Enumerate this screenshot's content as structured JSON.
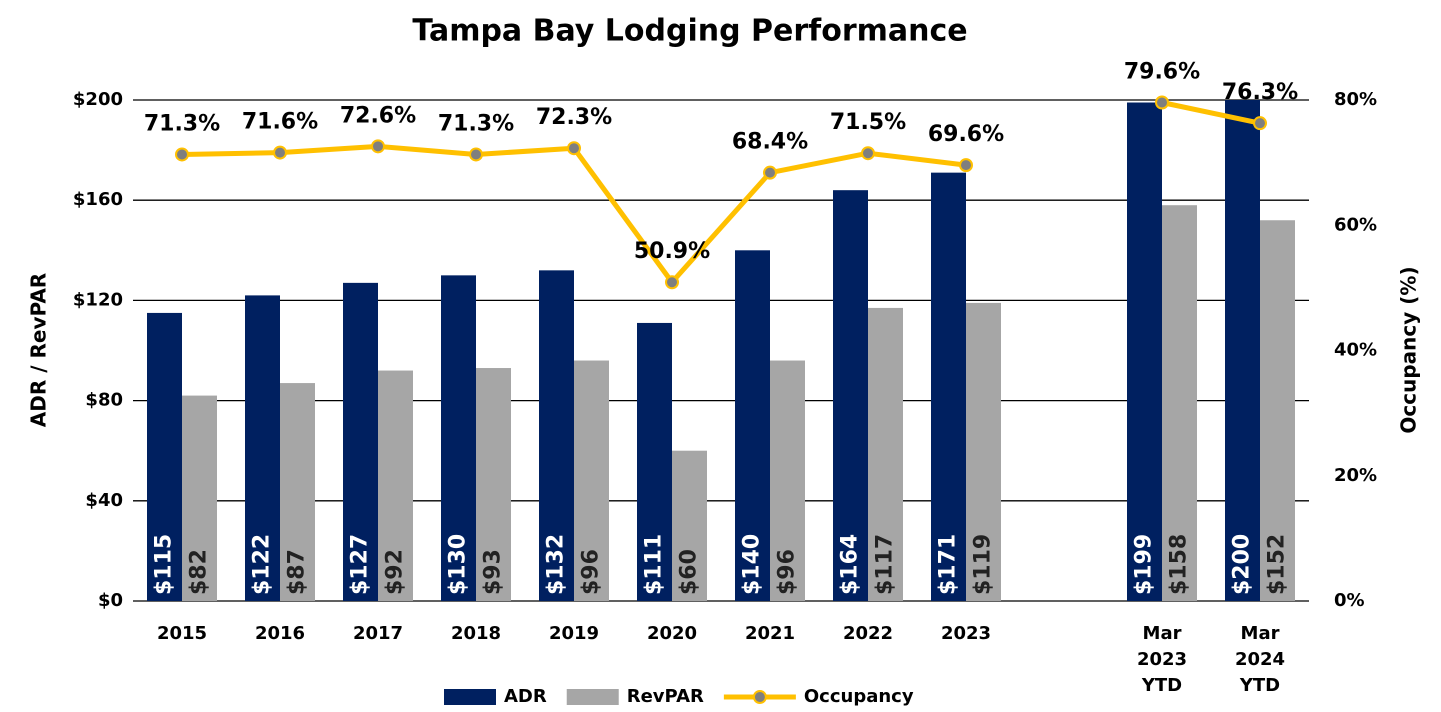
{
  "chart_data": {
    "type": "bar",
    "title": "Tampa Bay Lodging Performance",
    "y_label": "ADR / RevPAR",
    "y2_label": "Occupancy (%)",
    "categories": [
      "2015",
      "2016",
      "2017",
      "2018",
      "2019",
      "2020",
      "2021",
      "2022",
      "2023",
      null,
      "Mar 2023 YTD",
      "Mar 2024 YTD"
    ],
    "series": [
      {
        "name": "ADR",
        "type": "bar",
        "color": "#002060",
        "values": [
          115,
          122,
          127,
          130,
          132,
          111,
          140,
          164,
          171,
          null,
          199,
          200
        ],
        "value_labels": [
          "$115",
          "$122",
          "$127",
          "$130",
          "$132",
          "$111",
          "$140",
          "$164",
          "$171",
          null,
          "$199",
          "$200"
        ]
      },
      {
        "name": "RevPAR",
        "type": "bar",
        "color": "#A6A6A6",
        "values": [
          82,
          87,
          92,
          93,
          96,
          60,
          96,
          117,
          119,
          null,
          158,
          152
        ],
        "value_labels": [
          "$82",
          "$87",
          "$92",
          "$93",
          "$96",
          "$60",
          "$96",
          "$117",
          "$119",
          null,
          "$158",
          "$152"
        ]
      },
      {
        "name": "Occupancy",
        "type": "line",
        "axis": "y2",
        "color": "#FFC000",
        "marker_color": "#7F7F7F",
        "values": [
          71.3,
          71.6,
          72.6,
          71.3,
          72.3,
          50.9,
          68.4,
          71.5,
          69.6,
          null,
          79.6,
          76.3
        ],
        "value_labels": [
          "71.3%",
          "71.6%",
          "72.6%",
          "71.3%",
          "72.3%",
          "50.9%",
          "68.4%",
          "71.5%",
          "69.6%",
          null,
          "79.6%",
          "76.3%"
        ]
      }
    ],
    "ylim": [
      0,
      200
    ],
    "yticks": [
      {
        "value": 0,
        "label": "$0"
      },
      {
        "value": 40,
        "label": "$40"
      },
      {
        "value": 80,
        "label": "$80"
      },
      {
        "value": 120,
        "label": "$120"
      },
      {
        "value": 160,
        "label": "$160"
      },
      {
        "value": 200,
        "label": "$200"
      }
    ],
    "y2lim": [
      0,
      80
    ],
    "y2ticks": [
      {
        "value": 0,
        "label": "0%"
      },
      {
        "value": 20,
        "label": "20%"
      },
      {
        "value": 40,
        "label": "40%"
      },
      {
        "value": 60,
        "label": "60%"
      },
      {
        "value": 80,
        "label": "80%"
      }
    ],
    "grid": true,
    "legend": "bottom"
  }
}
